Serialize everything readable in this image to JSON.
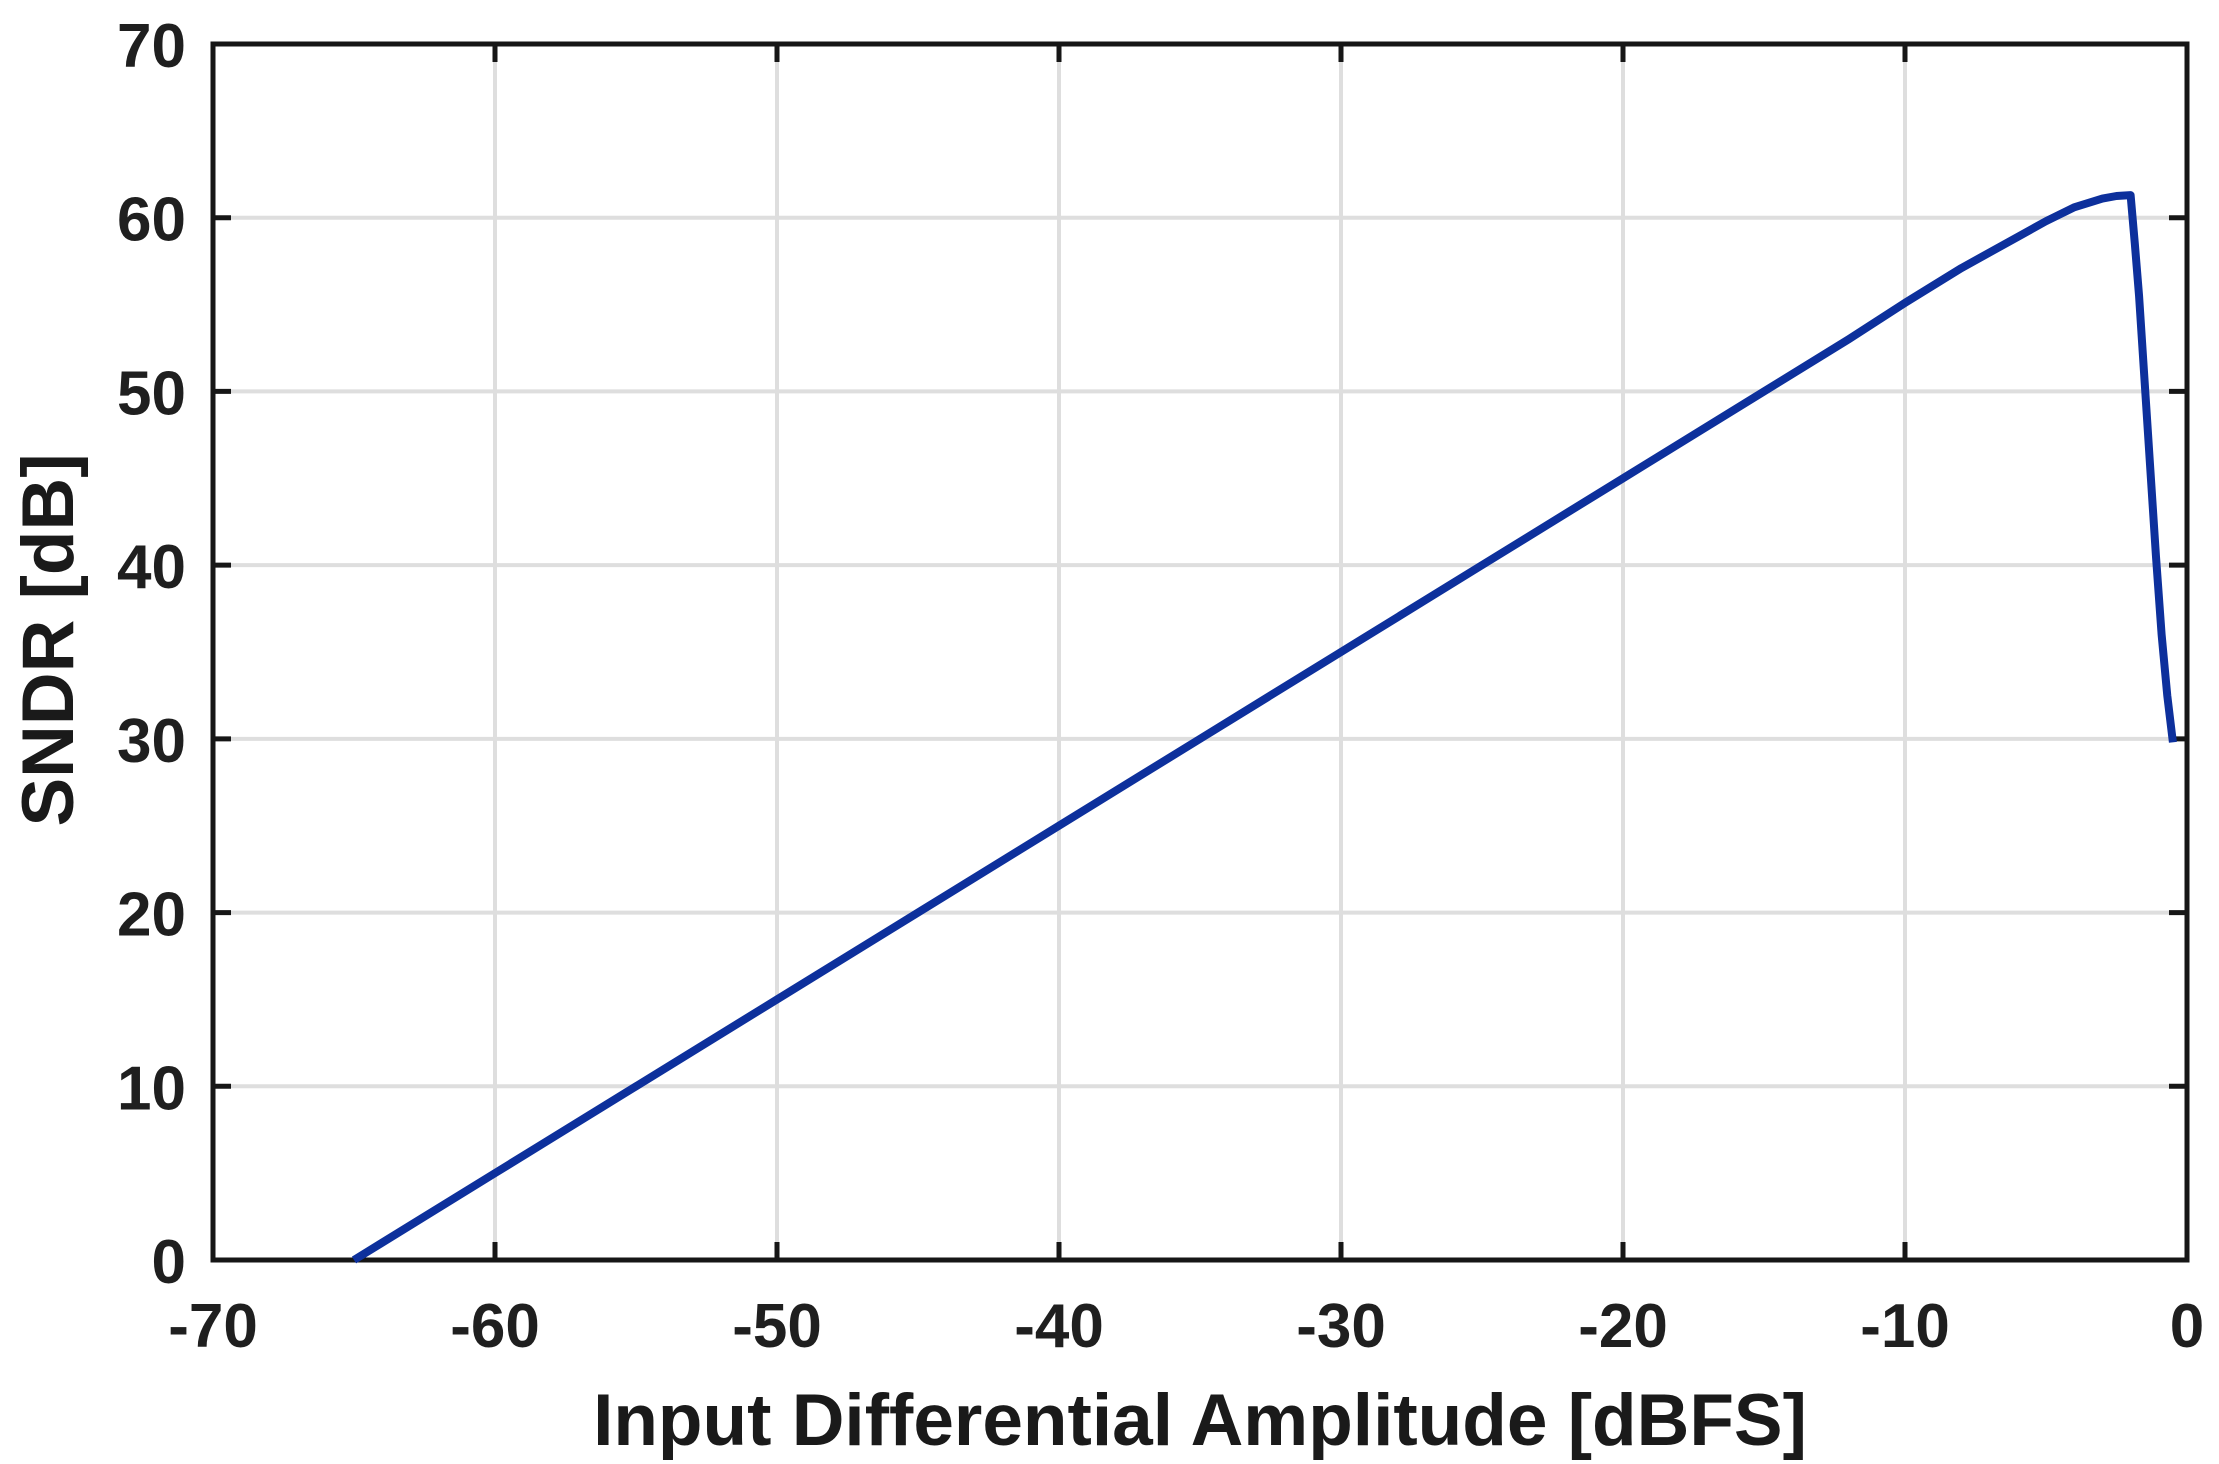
{
  "chart_data": {
    "type": "line",
    "title": "",
    "xlabel": "Input Differential Amplitude [dBFS]",
    "ylabel": "SNDR [dB]",
    "xlim": [
      -70,
      0
    ],
    "ylim": [
      0,
      70
    ],
    "xticks": [
      -70,
      -60,
      -50,
      -40,
      -30,
      -20,
      -10,
      0
    ],
    "xtick_labels": [
      "-70",
      "-60",
      "-50",
      "-40",
      "-30",
      "-20",
      "-10",
      "0"
    ],
    "yticks": [
      0,
      10,
      20,
      30,
      40,
      50,
      60,
      70
    ],
    "ytick_labels": [
      "0",
      "10",
      "20",
      "30",
      "40",
      "50",
      "60",
      "70"
    ],
    "grid": true,
    "legend": null,
    "colors": {
      "line": "#0d309c",
      "grid": "#dedede",
      "frame": "#161616",
      "text": "#1f1f1f",
      "background": "#ffffff"
    },
    "series": [
      {
        "name": "SNDR",
        "color": "#0d309c",
        "x": [
          -65,
          -60,
          -55,
          -50,
          -45,
          -40,
          -35,
          -30,
          -25,
          -20,
          -15,
          -12,
          -10,
          -8,
          -6,
          -5,
          -4,
          -3,
          -2.5,
          -2,
          -1.85,
          -1.7,
          -1.5,
          -1.3,
          -1.1,
          -0.9,
          -0.7,
          -0.5
        ],
        "y": [
          0,
          5,
          10,
          15,
          20,
          25,
          30,
          35,
          40,
          45,
          50,
          53,
          55.1,
          57.1,
          58.9,
          59.8,
          60.6,
          61.1,
          61.25,
          61.3,
          58.5,
          55.5,
          50.5,
          45.5,
          40.5,
          36,
          32.5,
          29.8
        ]
      }
    ]
  }
}
